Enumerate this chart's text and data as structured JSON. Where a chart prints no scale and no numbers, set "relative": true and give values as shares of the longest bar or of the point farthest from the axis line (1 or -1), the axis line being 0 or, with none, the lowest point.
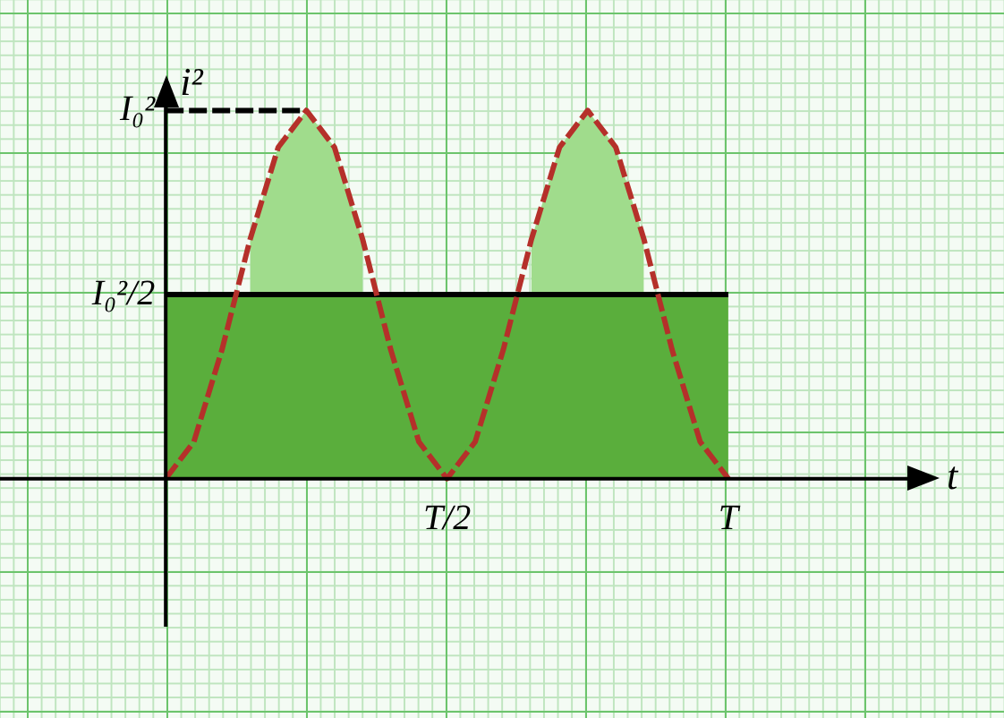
{
  "chart_data": {
    "type": "area",
    "xlabel": "t",
    "ylabel": "i²",
    "relative": true,
    "categories": [
      null,
      null,
      null,
      null,
      null,
      null,
      null,
      null,
      null,
      null,
      null,
      null,
      null,
      null,
      null,
      "T/2",
      null,
      null,
      null,
      null,
      null,
      null,
      null,
      null,
      null,
      "T",
      null,
      null,
      null,
      null,
      null,
      null,
      null
    ],
    "annotations": [
      "I₀²",
      "I₀²/2"
    ],
    "legend": false,
    "series": [
      {
        "color": "#5aae3c",
        "line_style": "solid",
        "values": [
          null,
          null,
          null,
          null,
          null,
          0.5,
          0.5,
          0.5,
          0.5,
          0.5,
          0.5,
          0.5,
          0.5,
          0.5,
          0.5,
          0.5,
          0.5,
          0.5,
          0.5,
          0.5,
          0.5,
          0.5,
          0.5,
          0.5,
          0.5,
          0.5,
          null,
          null,
          null,
          null,
          null,
          null,
          null
        ]
      },
      {
        "type": "area",
        "color": "#a0dc8c",
        "values": [
          null,
          null,
          null,
          null,
          null,
          null,
          null,
          null,
          0.65,
          0.9,
          1,
          0.9,
          0.65,
          null,
          null,
          null,
          null,
          null,
          0.65,
          0.9,
          1,
          0.9,
          0.65,
          null,
          null,
          null,
          null,
          null,
          null,
          null,
          null,
          null,
          null
        ]
      },
      {
        "type": "line",
        "color": "#b5302a",
        "line_style": "dashed",
        "values": [
          null,
          null,
          null,
          null,
          null,
          0,
          0.1,
          0.35,
          0.65,
          0.9,
          1,
          0.9,
          0.65,
          0.35,
          0.1,
          0,
          0.1,
          0.35,
          0.65,
          0.9,
          1,
          0.9,
          0.65,
          0.35,
          0.1,
          0,
          null,
          null,
          null,
          null,
          null,
          null,
          null
        ]
      },
      {
        "type": "line",
        "color": "#000000",
        "line_style": "dashed",
        "values": [
          null,
          null,
          null,
          null,
          null,
          1,
          1,
          1,
          1,
          1,
          1,
          null,
          null,
          null,
          null,
          null,
          null,
          null,
          null,
          null,
          null,
          null,
          null,
          null,
          null,
          null,
          null,
          null,
          null,
          null,
          null,
          null,
          null
        ]
      }
    ]
  }
}
